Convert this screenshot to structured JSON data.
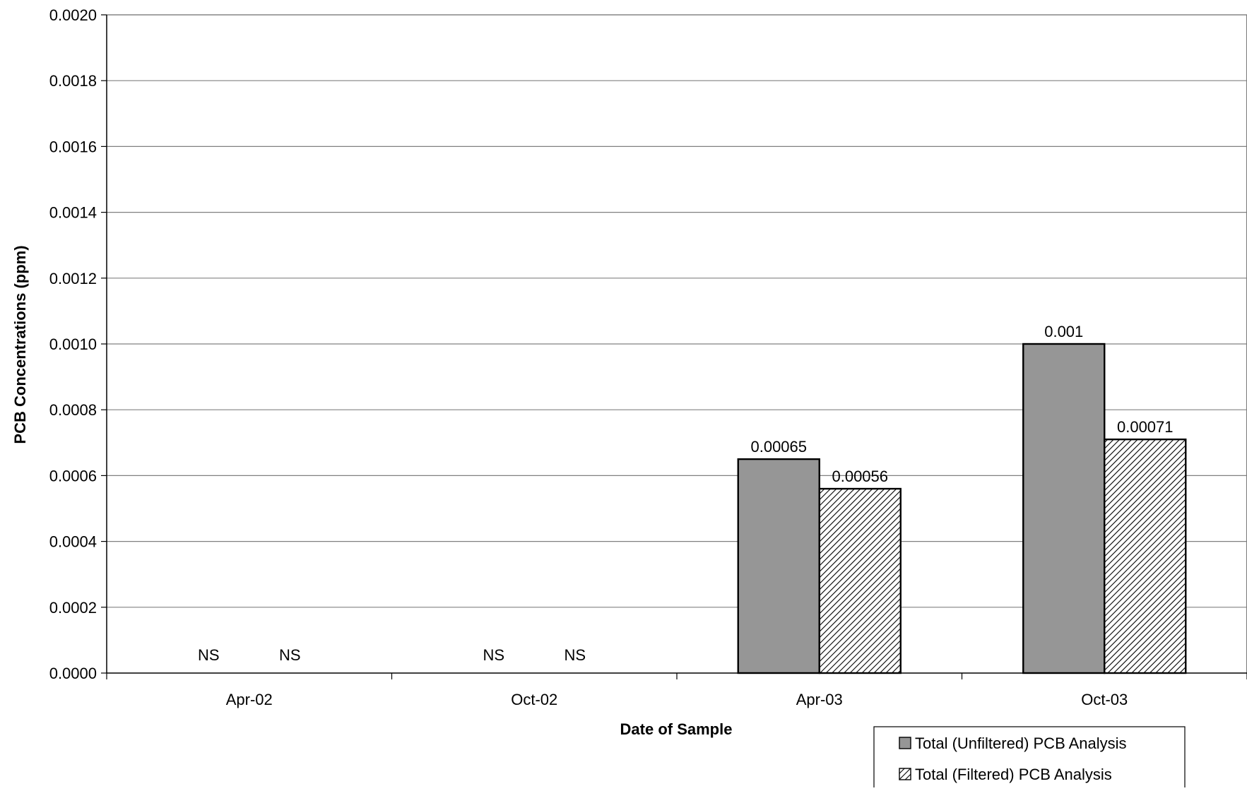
{
  "chart_data": {
    "type": "bar",
    "xlabel": "Date of Sample",
    "ylabel": "PCB Concentrations (ppm)",
    "categories": [
      "Apr-02",
      "Oct-02",
      "Apr-03",
      "Oct-03"
    ],
    "ylim": [
      0,
      0.002
    ],
    "yticks": [
      "0.0000",
      "0.0002",
      "0.0004",
      "0.0006",
      "0.0008",
      "0.0010",
      "0.0012",
      "0.0014",
      "0.0016",
      "0.0018",
      "0.0020"
    ],
    "grid": true,
    "legend_position": "bottom-right",
    "series": [
      {
        "name": "Total (Unfiltered) PCB Analysis",
        "color": "#969696",
        "pattern": "solid",
        "values": [
          null,
          null,
          0.00065,
          0.001
        ],
        "labels": [
          "NS",
          "NS",
          "0.00065",
          "0.001"
        ]
      },
      {
        "name": "Total (Filtered) PCB Analysis",
        "color": "#ffffff",
        "pattern": "diagonal-hatch",
        "values": [
          null,
          null,
          0.00056,
          0.00071
        ],
        "labels": [
          "NS",
          "NS",
          "0.00056",
          "0.00071"
        ]
      }
    ]
  }
}
